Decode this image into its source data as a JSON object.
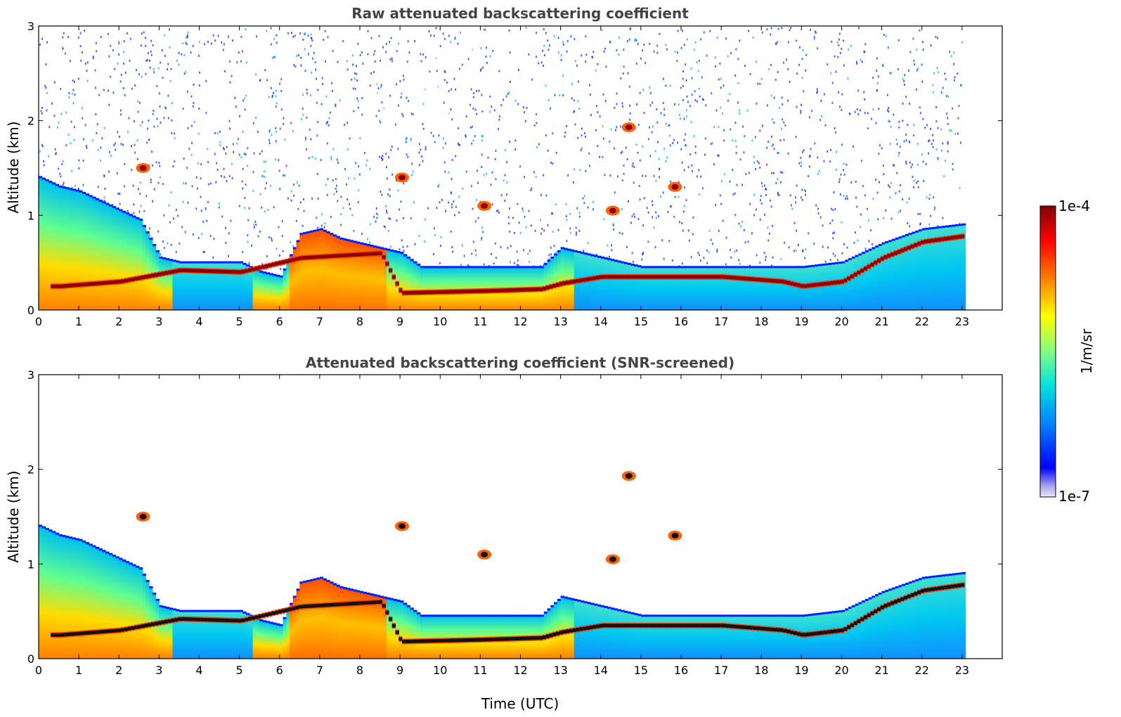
{
  "chart_data": [
    {
      "type": "heatmap",
      "title": "Raw attenuated backscattering coefficient",
      "xlabel": "",
      "ylabel": "Altitude (km)",
      "xlim": [
        0,
        24
      ],
      "ylim": [
        0,
        3
      ],
      "xticks": [
        "0",
        "1",
        "2",
        "3",
        "4",
        "5",
        "6",
        "7",
        "8",
        "9",
        "10",
        "11",
        "12",
        "13",
        "14",
        "15",
        "16",
        "17",
        "18",
        "19",
        "20",
        "21",
        "22",
        "23"
      ],
      "yticks": [
        "0",
        "1",
        "2",
        "3"
      ],
      "data_extent_hours": [
        0,
        23
      ],
      "layers": {
        "boundary_layer_top_km": [
          [
            0,
            1.4
          ],
          [
            0.5,
            1.3
          ],
          [
            1,
            1.25
          ],
          [
            1.5,
            1.15
          ],
          [
            2,
            1.05
          ],
          [
            2.5,
            0.95
          ],
          [
            3,
            0.55
          ],
          [
            3.5,
            0.5
          ],
          [
            4,
            0.5
          ],
          [
            4.5,
            0.5
          ],
          [
            5,
            0.5
          ],
          [
            5.5,
            0.4
          ],
          [
            6,
            0.35
          ],
          [
            6.5,
            0.8
          ],
          [
            7,
            0.85
          ],
          [
            7.5,
            0.75
          ],
          [
            8,
            0.7
          ],
          [
            8.5,
            0.65
          ],
          [
            9,
            0.6
          ],
          [
            9.5,
            0.45
          ],
          [
            10,
            0.45
          ],
          [
            10.5,
            0.45
          ],
          [
            11,
            0.45
          ],
          [
            11.5,
            0.45
          ],
          [
            12,
            0.45
          ],
          [
            12.5,
            0.45
          ],
          [
            13,
            0.65
          ],
          [
            13.5,
            0.6
          ],
          [
            14,
            0.55
          ],
          [
            14.5,
            0.5
          ],
          [
            15,
            0.45
          ],
          [
            16,
            0.45
          ],
          [
            17,
            0.45
          ],
          [
            18,
            0.45
          ],
          [
            19,
            0.45
          ],
          [
            20,
            0.5
          ],
          [
            21,
            0.7
          ],
          [
            22,
            0.85
          ],
          [
            23,
            0.9
          ]
        ],
        "strong_layer_km": [
          [
            0.5,
            0.25
          ],
          [
            2,
            0.3
          ],
          [
            3.5,
            0.42
          ],
          [
            5,
            0.4
          ],
          [
            6.5,
            0.55
          ],
          [
            8.5,
            0.6
          ],
          [
            9,
            0.18
          ],
          [
            11,
            0.2
          ],
          [
            12.5,
            0.22
          ],
          [
            13,
            0.28
          ],
          [
            14,
            0.35
          ],
          [
            15,
            0.35
          ],
          [
            17,
            0.35
          ],
          [
            18.5,
            0.3
          ],
          [
            19,
            0.25
          ],
          [
            20,
            0.3
          ],
          [
            21,
            0.55
          ],
          [
            22,
            0.72
          ],
          [
            23,
            0.78
          ]
        ],
        "elevated_features": [
          {
            "time": 14.7,
            "alt_km": 1.93
          },
          {
            "time": 11.1,
            "alt_km": 1.1
          },
          {
            "time": 14.3,
            "alt_km": 1.05
          },
          {
            "time": 15.85,
            "alt_km": 1.3
          },
          {
            "time": 9.05,
            "alt_km": 1.4
          },
          {
            "time": 2.6,
            "alt_km": 1.5
          }
        ]
      }
    },
    {
      "type": "heatmap",
      "title": "Attenuated backscattering coefficient (SNR-screened)",
      "xlabel": "Time (UTC)",
      "ylabel": "Altitude (km)",
      "xlim": [
        0,
        24
      ],
      "ylim": [
        0,
        3
      ],
      "xticks": [
        "0",
        "1",
        "2",
        "3",
        "4",
        "5",
        "6",
        "7",
        "8",
        "9",
        "10",
        "11",
        "12",
        "13",
        "14",
        "15",
        "16",
        "17",
        "18",
        "19",
        "20",
        "21",
        "22",
        "23"
      ],
      "yticks": [
        "0",
        "1",
        "2",
        "3"
      ],
      "data_extent_hours": [
        0,
        23
      ]
    }
  ],
  "colorbar": {
    "max_label": "1e-4",
    "min_label": "1e-7",
    "unit_label": "1/m/sr",
    "scale": "log",
    "range": [
      1e-07,
      0.0001
    ],
    "colors": [
      "#e8e8f8",
      "#0000ff",
      "#0080ff",
      "#00e0e0",
      "#80ff80",
      "#ffff00",
      "#ff8000",
      "#ff0000",
      "#800000"
    ]
  }
}
